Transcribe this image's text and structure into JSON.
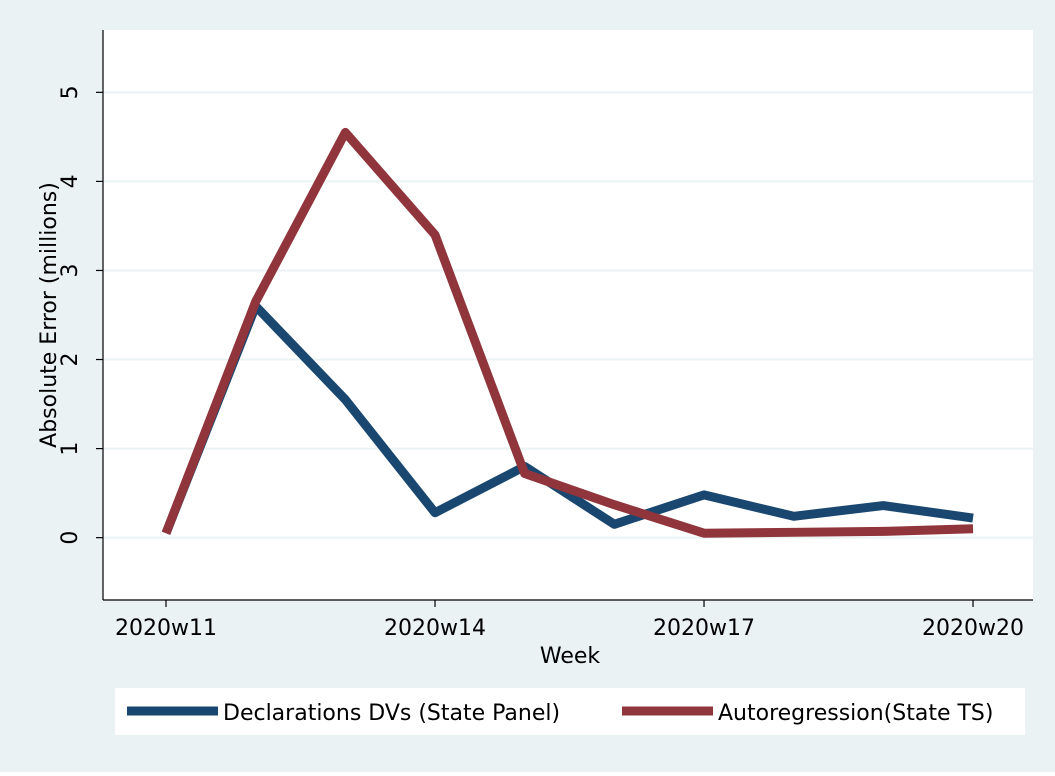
{
  "chart_data": {
    "type": "line",
    "x_label": "Week",
    "y_label": "Absolute Error (millions)",
    "categories": [
      "2020w11",
      null,
      null,
      "2020w14",
      null,
      null,
      "2020w17",
      null,
      null,
      "2020w20"
    ],
    "series": [
      {
        "name": "Declarations DVs (State Panel)",
        "color": "#1a476f",
        "values": [
          0.05,
          2.6,
          1.55,
          0.28,
          0.8,
          0.15,
          0.48,
          0.24,
          0.36,
          0.22
        ]
      },
      {
        "name": "Autoregression(State TS)",
        "color": "#90353b",
        "values": [
          0.05,
          2.65,
          4.55,
          3.4,
          0.72,
          0.37,
          0.05,
          0.06,
          0.07,
          0.1
        ]
      }
    ],
    "ylim": [
      -0.7,
      5.7
    ],
    "yticks": [
      0,
      1,
      2,
      3,
      4,
      5
    ],
    "grid": true,
    "legend": "bottom"
  }
}
